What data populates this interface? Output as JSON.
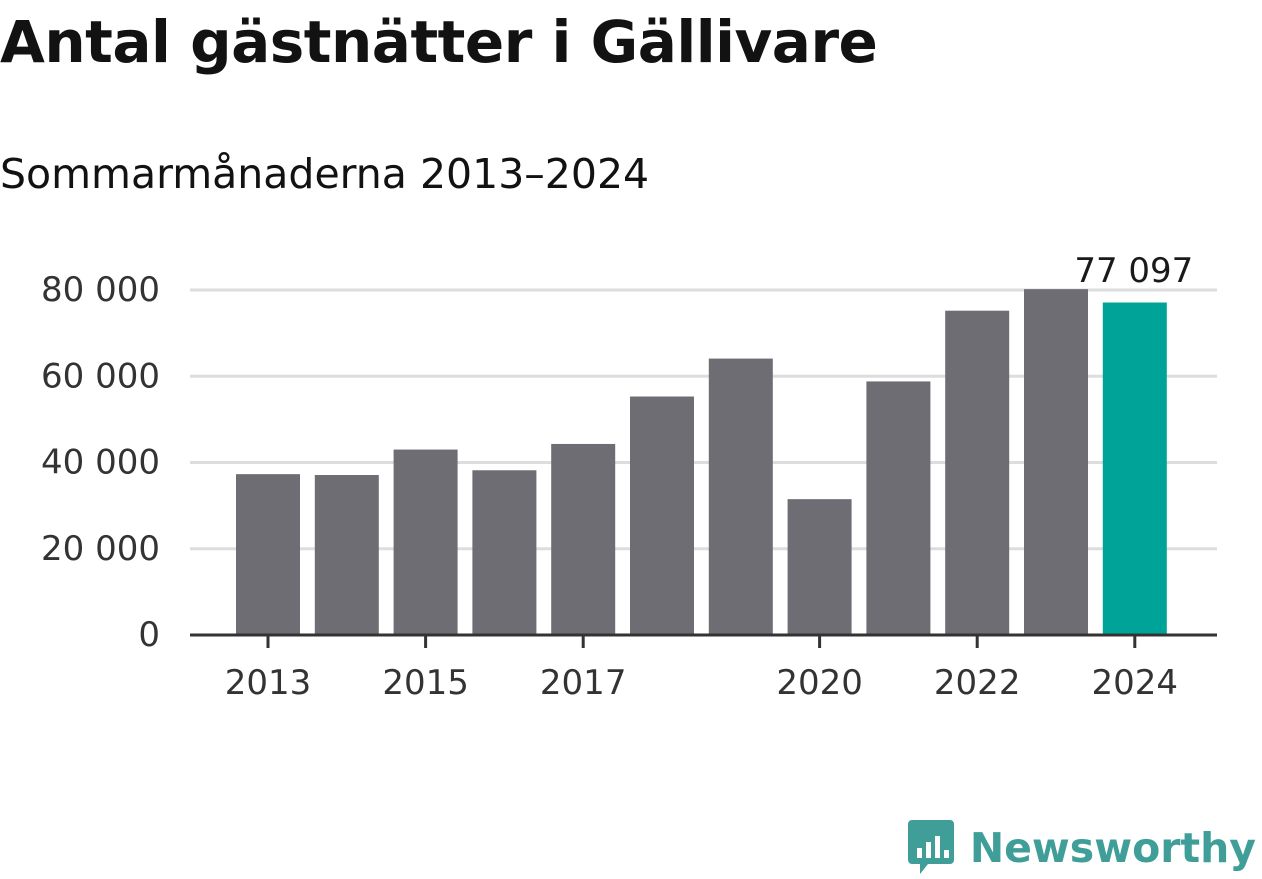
{
  "title": "Antal gästnätter i Gällivare",
  "subtitle": "Sommarmånaderna 2013–2024",
  "brand": {
    "name": "Newsworthy",
    "icon": "newsworthy-logo-icon"
  },
  "colors": {
    "bar": "#6e6d73",
    "highlight": "#00a398",
    "grid": "#dddddd",
    "axis": "#333333",
    "brand": "#3f9e98"
  },
  "chart_data": {
    "type": "bar",
    "categories": [
      "2013",
      "2014",
      "2015",
      "2016",
      "2017",
      "2018",
      "2019",
      "2020",
      "2021",
      "2022",
      "2023",
      "2024"
    ],
    "values": [
      37300,
      37100,
      43000,
      38200,
      44300,
      55300,
      64100,
      31500,
      58800,
      75200,
      80200,
      77097
    ],
    "tick_labels_x": [
      "2013",
      "2015",
      "2017",
      "2020",
      "2022",
      "2024"
    ],
    "y_ticks": [
      0,
      20000,
      40000,
      60000,
      80000
    ],
    "y_tick_labels": [
      "0",
      "20 000",
      "40 000",
      "60 000",
      "80 000"
    ],
    "ylim": [
      0,
      80000
    ],
    "grid": true,
    "highlight_index": 11,
    "annotation": {
      "index": 11,
      "label": "77 097"
    }
  }
}
